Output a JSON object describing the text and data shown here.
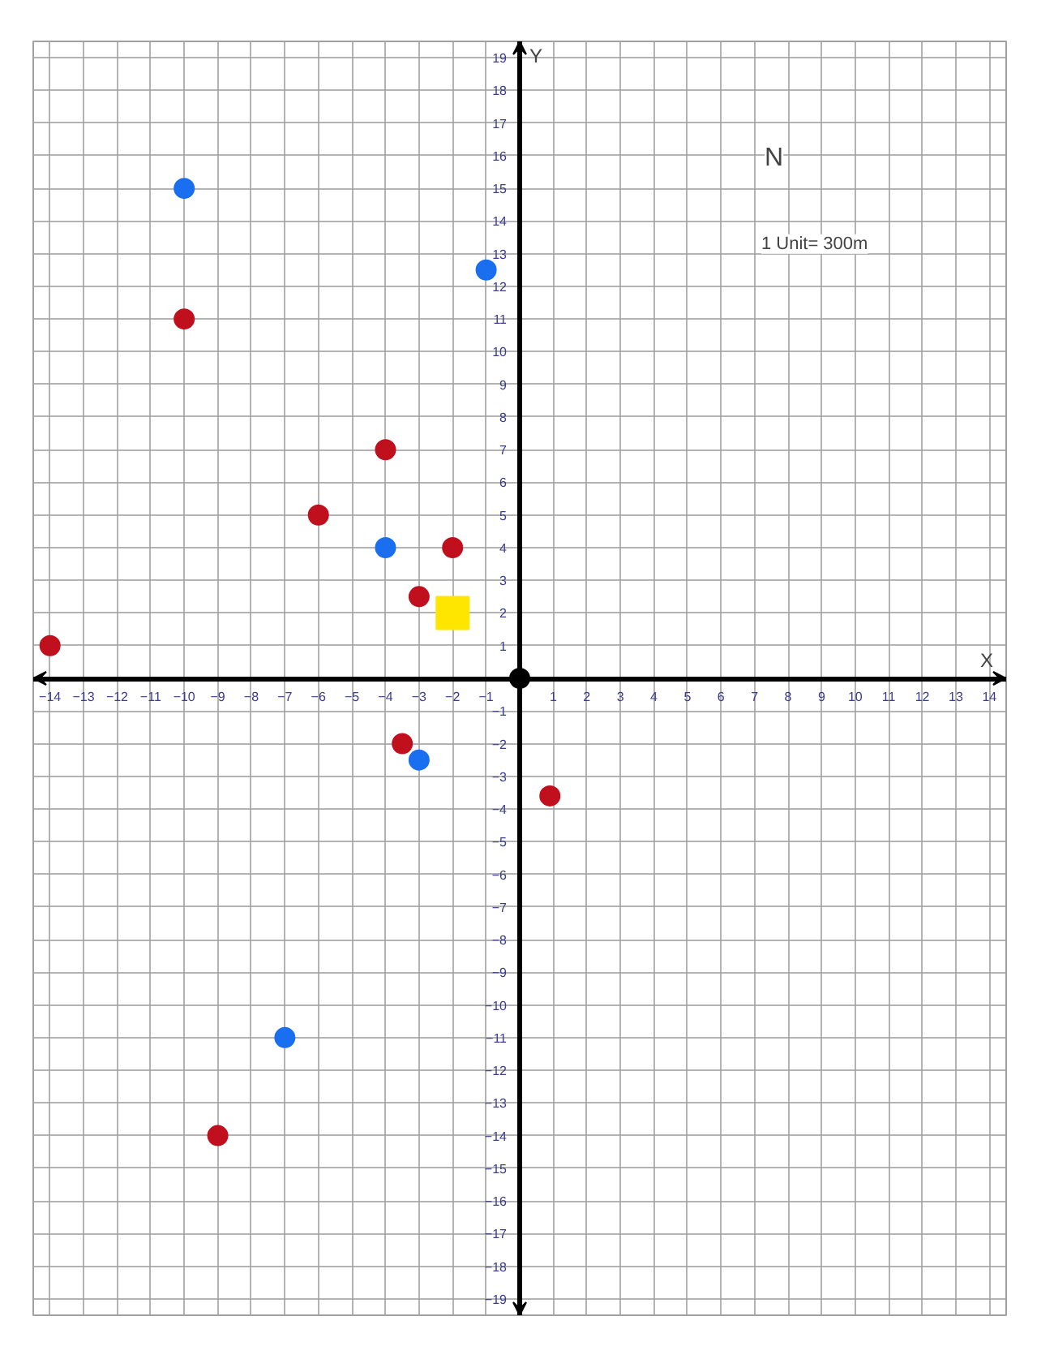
{
  "chart_data": {
    "type": "scatter",
    "xlabel": "X",
    "ylabel": "Y",
    "xlim": [
      -14.5,
      14.5
    ],
    "ylim": [
      -19.5,
      19.5
    ],
    "xticks": [
      -14,
      -13,
      -12,
      -11,
      -10,
      -9,
      -8,
      -7,
      -6,
      -5,
      -4,
      -3,
      -2,
      -1,
      1,
      2,
      3,
      4,
      5,
      6,
      7,
      8,
      9,
      10,
      11,
      12,
      13,
      14
    ],
    "yticks": [
      -19,
      -18,
      -17,
      -16,
      -15,
      -14,
      -13,
      -12,
      -11,
      -10,
      -9,
      -8,
      -7,
      -6,
      -5,
      -4,
      -3,
      -2,
      -1,
      1,
      2,
      3,
      4,
      5,
      6,
      7,
      8,
      9,
      10,
      11,
      12,
      13,
      14,
      15,
      16,
      17,
      18,
      19
    ],
    "grid": true,
    "marker": "circle",
    "annotations": [
      "N",
      "1 Unit= 300m"
    ],
    "series": [
      {
        "color": "#1a6ff0",
        "x": [
          -10,
          -1,
          -4,
          -3,
          -7
        ],
        "values": [
          15,
          12.5,
          4,
          -2.5,
          -11
        ]
      },
      {
        "color": "#c0101e",
        "x": [
          -14,
          -10,
          -4,
          -6,
          -2,
          -3,
          -3.5,
          0.9,
          -9
        ],
        "values": [
          1,
          11,
          7,
          5,
          4,
          2.5,
          -2,
          -3.6,
          -14
        ]
      },
      {
        "marker": "square",
        "color": "#ffe600",
        "x": [
          -2
        ],
        "values": [
          2
        ]
      },
      {
        "color": "#000000",
        "x": [
          0
        ],
        "values": [
          0
        ]
      }
    ]
  }
}
